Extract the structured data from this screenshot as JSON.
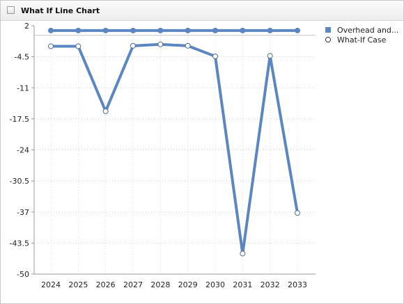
{
  "window": {
    "title": "What If Line Chart",
    "title_icon": "checkbox-icon"
  },
  "chart_data": {
    "type": "line",
    "categories": [
      "2024",
      "2025",
      "2026",
      "2027",
      "2028",
      "2029",
      "2030",
      "2031",
      "2032",
      "2033"
    ],
    "ylim": [
      -50,
      2
    ],
    "yticks": [
      2,
      -4.5,
      -11,
      -17.5,
      -24,
      -30.5,
      -37,
      -43.5,
      -50
    ],
    "ytick_labels": [
      "2",
      "-4.5",
      "-11",
      "-17.5",
      "-24",
      "-30.5",
      "-37",
      "-43.5",
      "-50"
    ],
    "grid": true,
    "legend_position": "top-right",
    "series": [
      {
        "name": "Overhead and...",
        "values": [
          1,
          1,
          1,
          1,
          1,
          1,
          1,
          1,
          1,
          1
        ],
        "color": "#5b86c1",
        "marker": "filled"
      },
      {
        "name": "What-If Case",
        "values": [
          -2.3,
          -2.3,
          -15.9,
          -2.2,
          -1.9,
          -2.2,
          -4.4,
          -45.7,
          -4.3,
          -37.2
        ],
        "color": "#5b86c1",
        "marker": "hollow"
      }
    ]
  }
}
